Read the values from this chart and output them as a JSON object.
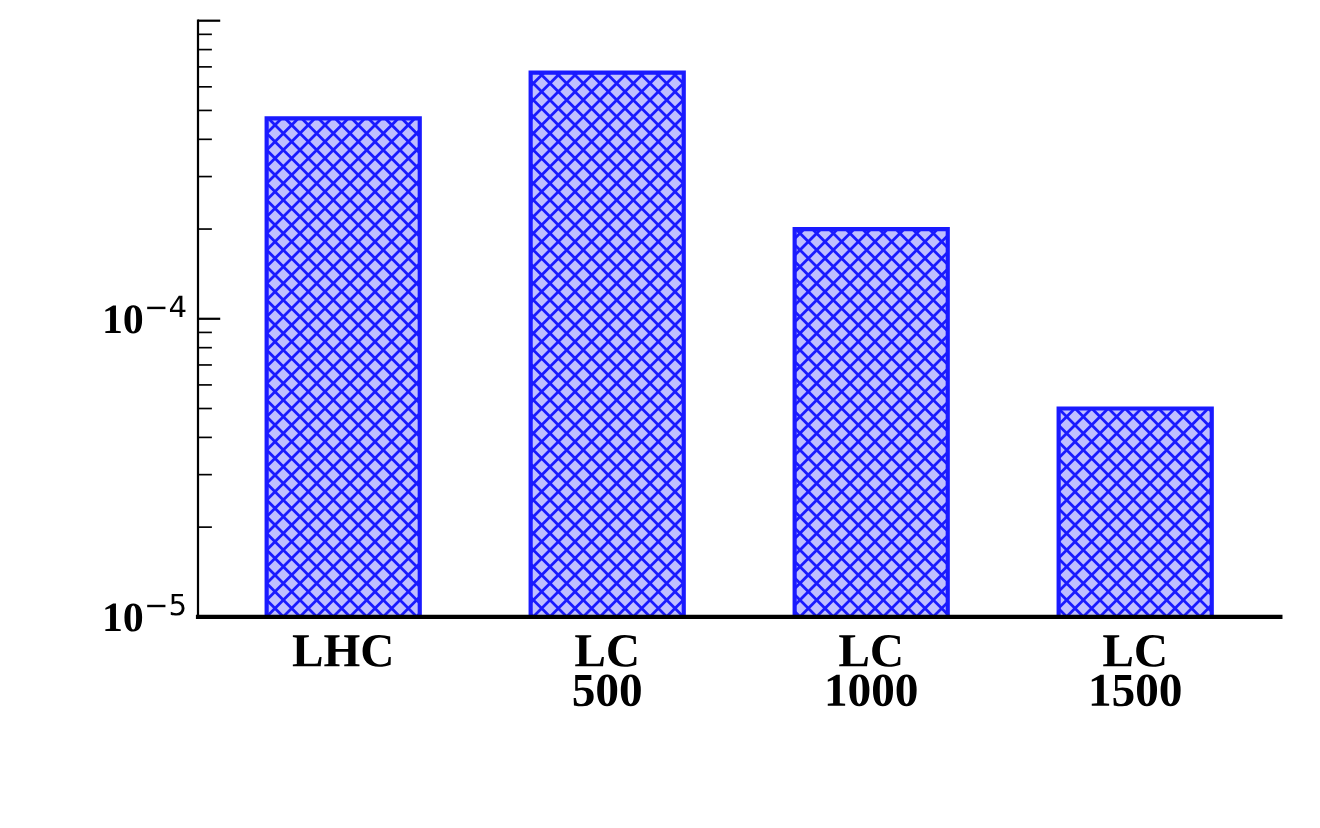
{
  "chart_data": {
    "type": "bar",
    "categories": [
      "LHC",
      "LC\n500",
      "LC\n1000",
      "LC\n1500"
    ],
    "values": [
      0.00047,
      0.00067,
      0.0002,
      5e-05
    ],
    "color": "#1a1aff",
    "log": true,
    "ylim": [
      1e-05,
      0.001
    ],
    "yticks": [
      {
        "value": 1e-05,
        "label": "10$^{−5}$"
      },
      {
        "value": 0.0001,
        "label": "10$^{−4}$"
      },
      {
        "value": 0.001,
        "label": null
      }
    ],
    "grid": false
  }
}
